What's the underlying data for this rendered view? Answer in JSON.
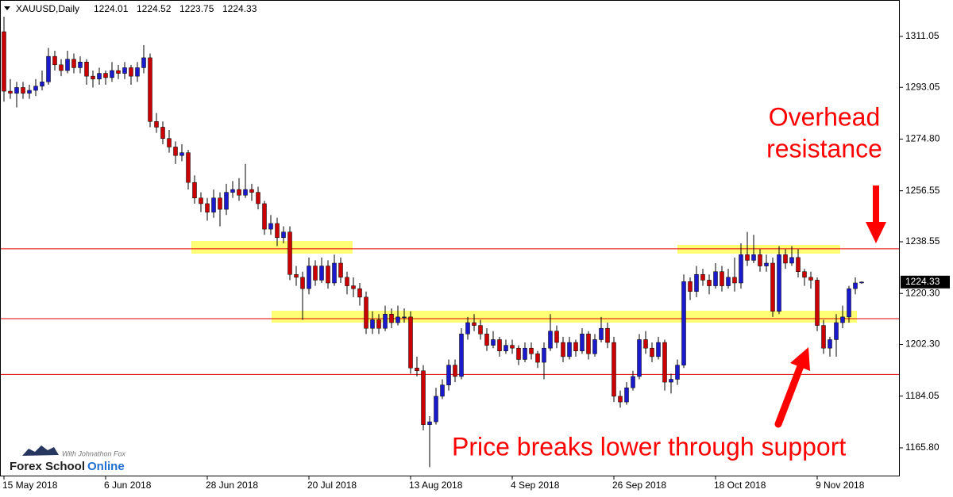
{
  "chart_data": {
    "type": "candlestick",
    "title": "XAUUSD,Daily",
    "bull_color": "#1a1acc",
    "bear_color": "#cc0000",
    "wick_color": "#000000",
    "level_color": "#e00000",
    "ylim": [
      1156.0,
      1323.9
    ],
    "yticks": [
      1311.05,
      1293.05,
      {
        "value": 1274.8,
        "label": "1274.80"
      },
      1256.55,
      1238.55,
      {
        "value": 1220.3,
        "label": "1220.30"
      },
      {
        "value": 1202.3,
        "label": "1202.30"
      },
      1184.05,
      {
        "value": 1165.8,
        "label": "1165.80"
      }
    ],
    "levels": [
      1236.05,
      1211.4,
      1191.7
    ],
    "annotations": {
      "resistance": [
        "Overhead",
        "resistance"
      ],
      "support": "Price breaks lower through support"
    },
    "logo": {
      "tagline": "With Johnathon Fox",
      "name": "Forex School",
      "accent": "Online"
    },
    "categories": [
      "15 May 2018",
      null,
      null,
      null,
      null,
      null,
      null,
      null,
      null,
      null,
      null,
      null,
      null,
      null,
      null,
      null,
      "6 Jun 2018",
      null,
      null,
      null,
      null,
      null,
      null,
      null,
      null,
      null,
      null,
      null,
      null,
      null,
      null,
      null,
      "28 Jun 2018",
      null,
      null,
      null,
      null,
      null,
      null,
      null,
      null,
      null,
      null,
      null,
      null,
      null,
      null,
      null,
      "20 Jul 2018",
      null,
      null,
      null,
      null,
      null,
      null,
      null,
      null,
      null,
      null,
      null,
      null,
      null,
      null,
      null,
      "13 Aug 2018",
      null,
      null,
      null,
      null,
      null,
      null,
      null,
      null,
      null,
      null,
      null,
      null,
      null,
      null,
      null,
      "4 Sep 2018",
      null,
      null,
      null,
      null,
      null,
      null,
      null,
      null,
      null,
      null,
      null,
      null,
      null,
      null,
      null,
      "26 Sep 2018",
      null,
      null,
      null,
      null,
      null,
      null,
      null,
      null,
      null,
      null,
      null,
      null,
      null,
      null,
      null,
      "18 Oct 2018",
      null,
      null,
      null,
      null,
      null,
      null,
      null,
      null,
      null,
      null,
      null,
      null,
      null,
      null,
      null,
      "9 Nov 2018",
      null,
      null,
      null,
      null,
      null,
      null,
      null
    ],
    "ohlc": [
      [
        1312.7,
        1318,
        1288,
        1291.7
      ],
      [
        1291.7,
        1296,
        1289,
        1291
      ],
      [
        1291,
        1295,
        1286,
        1293
      ],
      [
        1293,
        1295,
        1289,
        1291
      ],
      [
        1291,
        1294,
        1289,
        1292
      ],
      [
        1292,
        1296,
        1290,
        1293.5
      ],
      [
        1293.5,
        1299,
        1292,
        1295
      ],
      [
        1295,
        1307,
        1294,
        1304
      ],
      [
        1304,
        1306,
        1299,
        1301
      ],
      [
        1301,
        1303,
        1297,
        1299
      ],
      [
        1299,
        1306,
        1298,
        1303
      ],
      [
        1303,
        1305,
        1298,
        1300
      ],
      [
        1300,
        1304,
        1298,
        1302
      ],
      [
        1302,
        1303,
        1294,
        1297
      ],
      [
        1297,
        1299,
        1293,
        1296
      ],
      [
        1296,
        1300,
        1294,
        1298
      ],
      [
        1298,
        1299,
        1294,
        1296.5
      ],
      [
        1296.5,
        1302,
        1295,
        1299
      ],
      [
        1299,
        1301,
        1296,
        1298
      ],
      [
        1298,
        1302,
        1296,
        1300
      ],
      [
        1300,
        1301,
        1294,
        1297
      ],
      [
        1297,
        1302,
        1295,
        1300
      ],
      [
        1300,
        1308,
        1298,
        1303.5
      ],
      [
        1303.5,
        1305,
        1279,
        1281
      ],
      [
        1281,
        1284,
        1277,
        1279
      ],
      [
        1279,
        1281,
        1273,
        1275
      ],
      [
        1275,
        1278,
        1270,
        1272
      ],
      [
        1272,
        1274,
        1266,
        1269
      ],
      [
        1269,
        1273,
        1267,
        1270
      ],
      [
        1270,
        1271,
        1257,
        1259.5
      ],
      [
        1259.5,
        1262,
        1252,
        1254
      ],
      [
        1254,
        1256,
        1249,
        1252
      ],
      [
        1252,
        1254,
        1246,
        1249
      ],
      [
        1249,
        1257,
        1247,
        1254
      ],
      [
        1254,
        1256,
        1244,
        1250
      ],
      [
        1250,
        1259,
        1248,
        1256
      ],
      [
        1256,
        1260,
        1254,
        1257
      ],
      [
        1257,
        1261,
        1253,
        1255
      ],
      [
        1255,
        1266,
        1254,
        1257
      ],
      [
        1257,
        1259,
        1253,
        1256
      ],
      [
        1256,
        1258,
        1250,
        1252
      ],
      [
        1252,
        1253,
        1241,
        1243
      ],
      [
        1243,
        1248,
        1241,
        1245
      ],
      [
        1245,
        1247,
        1237,
        1240
      ],
      [
        1240,
        1244,
        1238,
        1242
      ],
      [
        1242,
        1244,
        1225,
        1227
      ],
      [
        1227,
        1230,
        1223,
        1226
      ],
      [
        1226,
        1228,
        1211,
        1222
      ],
      [
        1222,
        1233,
        1220,
        1230
      ],
      [
        1230,
        1232,
        1223,
        1225
      ],
      [
        1225,
        1233,
        1224,
        1230
      ],
      [
        1230,
        1232,
        1222,
        1224
      ],
      [
        1224,
        1234,
        1223,
        1231
      ],
      [
        1231,
        1233,
        1224,
        1226
      ],
      [
        1226,
        1228,
        1220,
        1223
      ],
      [
        1223,
        1226,
        1219,
        1222
      ],
      [
        1222,
        1224,
        1216,
        1219
      ],
      [
        1219,
        1221,
        1206,
        1208
      ],
      [
        1208,
        1214,
        1206,
        1211
      ],
      [
        1211,
        1213,
        1206,
        1208
      ],
      [
        1208,
        1216,
        1207,
        1213
      ],
      [
        1213,
        1215,
        1208,
        1210
      ],
      [
        1210,
        1216,
        1209,
        1212
      ],
      [
        1212,
        1215,
        1210,
        1212
      ],
      [
        1212,
        1214,
        1192,
        1194
      ],
      [
        1194,
        1198,
        1191,
        1193
      ],
      [
        1193,
        1195,
        1172,
        1174
      ],
      [
        1174,
        1177,
        1159,
        1175
      ],
      [
        1175,
        1187,
        1174,
        1184
      ],
      [
        1184,
        1190,
        1183,
        1188
      ],
      [
        1188,
        1197,
        1186,
        1195
      ],
      [
        1195,
        1197,
        1189,
        1191
      ],
      [
        1191,
        1208,
        1190,
        1206
      ],
      [
        1206,
        1212,
        1204,
        1210
      ],
      [
        1210,
        1213,
        1207,
        1209
      ],
      [
        1209,
        1211,
        1204,
        1206
      ],
      [
        1206,
        1208,
        1200,
        1202
      ],
      [
        1202,
        1207,
        1201,
        1204
      ],
      [
        1204,
        1205,
        1198,
        1200
      ],
      [
        1200,
        1204,
        1199,
        1202
      ],
      [
        1202,
        1204,
        1199,
        1201
      ],
      [
        1201,
        1202,
        1195,
        1197
      ],
      [
        1197,
        1203,
        1196,
        1201
      ],
      [
        1201,
        1203,
        1197,
        1199
      ],
      [
        1199,
        1200,
        1194,
        1196
      ],
      [
        1196,
        1203,
        1190,
        1201
      ],
      [
        1201,
        1213,
        1200,
        1207
      ],
      [
        1207,
        1209,
        1201,
        1203
      ],
      [
        1203,
        1205,
        1196,
        1198
      ],
      [
        1198,
        1205,
        1197,
        1203
      ],
      [
        1203,
        1204,
        1198,
        1200
      ],
      [
        1200,
        1208,
        1199,
        1206
      ],
      [
        1206,
        1207,
        1197,
        1199
      ],
      [
        1199,
        1206,
        1198,
        1204
      ],
      [
        1204,
        1212,
        1203,
        1208
      ],
      [
        1208,
        1210,
        1201,
        1203
      ],
      [
        1203,
        1205,
        1182,
        1184
      ],
      [
        1184,
        1186,
        1180,
        1182
      ],
      [
        1182,
        1189,
        1181,
        1187
      ],
      [
        1187,
        1193,
        1186,
        1191
      ],
      [
        1191,
        1206,
        1190,
        1204
      ],
      [
        1204,
        1207,
        1199,
        1201
      ],
      [
        1201,
        1203,
        1196,
        1198
      ],
      [
        1198,
        1205,
        1197,
        1203
      ],
      [
        1203,
        1204,
        1186,
        1189
      ],
      [
        1189,
        1192,
        1185,
        1190
      ],
      [
        1190,
        1197,
        1188,
        1195
      ],
      [
        1195,
        1227,
        1194,
        1224.5
      ],
      [
        1224.5,
        1226,
        1218,
        1221
      ],
      [
        1221,
        1230,
        1219,
        1227
      ],
      [
        1227,
        1229,
        1223,
        1225
      ],
      [
        1225,
        1227,
        1220,
        1223
      ],
      [
        1223,
        1231,
        1222,
        1228
      ],
      [
        1228,
        1230,
        1221,
        1223
      ],
      [
        1223,
        1229,
        1222,
        1226
      ],
      [
        1226,
        1233,
        1221,
        1224
      ],
      [
        1224,
        1238,
        1222,
        1234
      ],
      [
        1234,
        1242,
        1230,
        1232
      ],
      [
        1232,
        1241,
        1231,
        1234
      ],
      [
        1234,
        1236,
        1228,
        1230
      ],
      [
        1230,
        1234,
        1228,
        1231
      ],
      [
        1231,
        1233,
        1212,
        1214
      ],
      [
        1214,
        1237,
        1213,
        1234
      ],
      [
        1234,
        1236,
        1229,
        1231
      ],
      [
        1231,
        1237,
        1230,
        1233
      ],
      [
        1233,
        1236,
        1226,
        1228
      ],
      [
        1228,
        1229,
        1223,
        1226
      ],
      [
        1226,
        1228,
        1222,
        1225
      ],
      [
        1225,
        1226,
        1207,
        1209
      ],
      [
        1209,
        1211,
        1199,
        1201
      ],
      [
        1201,
        1205,
        1198,
        1204
      ],
      [
        1204,
        1213,
        1198,
        1210
      ],
      [
        1210,
        1216,
        1208,
        1212
      ],
      [
        1212,
        1223,
        1210,
        1222
      ],
      [
        1222,
        1226,
        1220,
        1224
      ],
      [
        1224.01,
        1224.52,
        1223.75,
        1224.33
      ]
    ]
  }
}
